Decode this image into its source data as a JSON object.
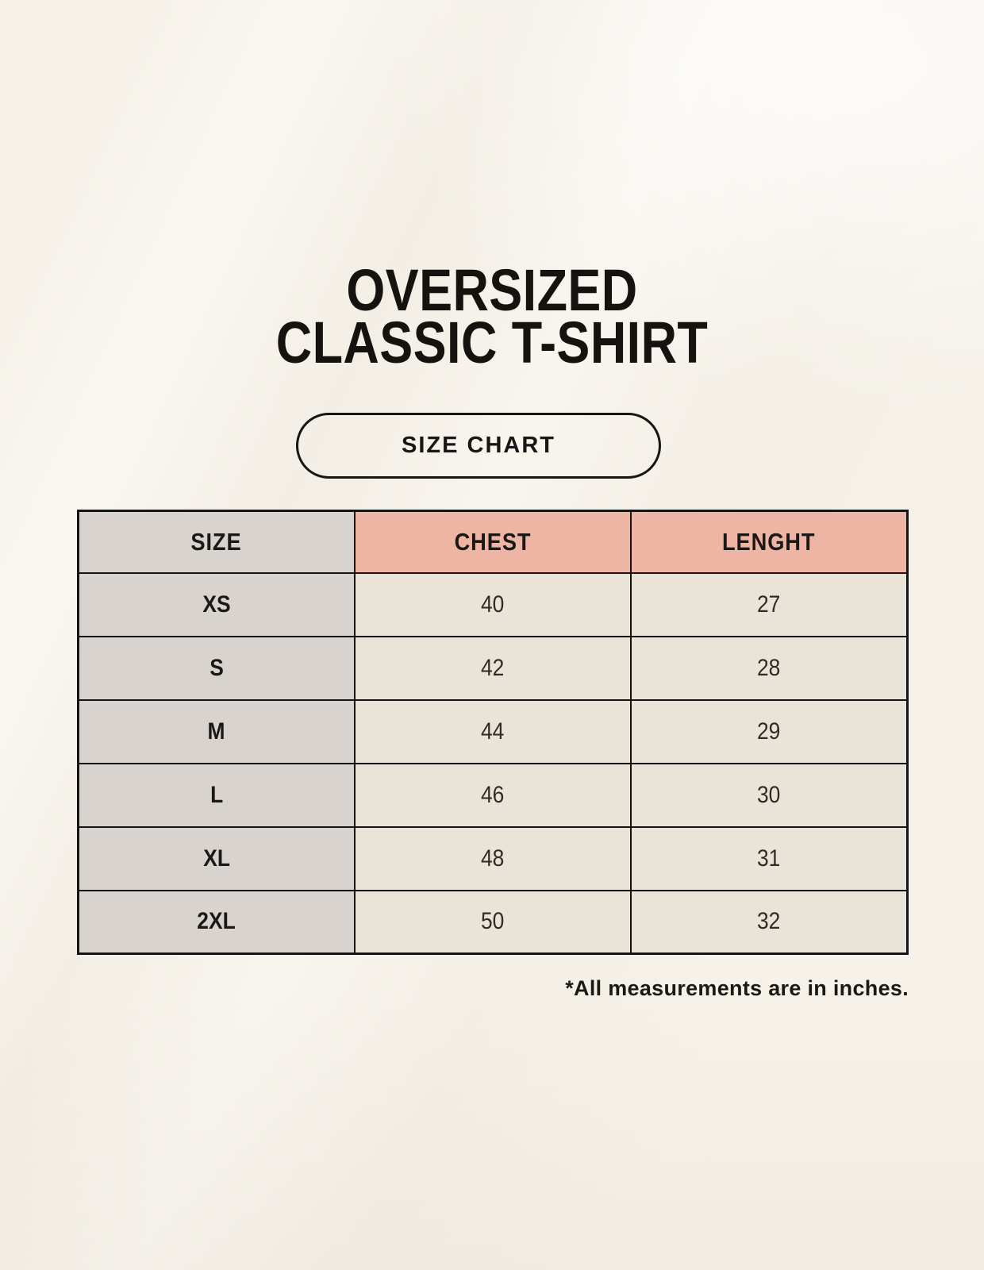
{
  "page": {
    "background_color": "#f6f2ea",
    "text_color": "#1c1a17"
  },
  "title": {
    "line1": "OVERSIZED",
    "line2": "CLASSIC T-SHIRT"
  },
  "size_chart_button": {
    "label": "SIZE CHART"
  },
  "table": {
    "headers": [
      "SIZE",
      "CHEST",
      "LENGHT"
    ],
    "rows": [
      {
        "size": "XS",
        "chest": "40",
        "length": "27"
      },
      {
        "size": "S",
        "chest": "42",
        "length": "28"
      },
      {
        "size": "M",
        "chest": "44",
        "length": "29"
      },
      {
        "size": "L",
        "chest": "46",
        "length": "30"
      },
      {
        "size": "XL",
        "chest": "48",
        "length": "31"
      },
      {
        "size": "2XL",
        "chest": "50",
        "length": "32"
      }
    ],
    "colors": {
      "header_pink": "#efb5a4",
      "size_column_gray": "#d8d3ce",
      "data_cell_cream": "#e9e3d8",
      "border_black": "#141414"
    }
  },
  "footnote": "*All measurements are in inches.",
  "chart_data": {
    "type": "table",
    "title": "OVERSIZED CLASSIC T-SHIRT",
    "subtitle": "SIZE CHART",
    "columns": [
      "SIZE",
      "CHEST",
      "LENGHT"
    ],
    "rows": [
      [
        "XS",
        40,
        27
      ],
      [
        "S",
        42,
        28
      ],
      [
        "M",
        44,
        29
      ],
      [
        "L",
        46,
        30
      ],
      [
        "XL",
        48,
        31
      ],
      [
        "2XL",
        50,
        32
      ]
    ],
    "units": "inches",
    "note": "*All measurements are in inches."
  }
}
